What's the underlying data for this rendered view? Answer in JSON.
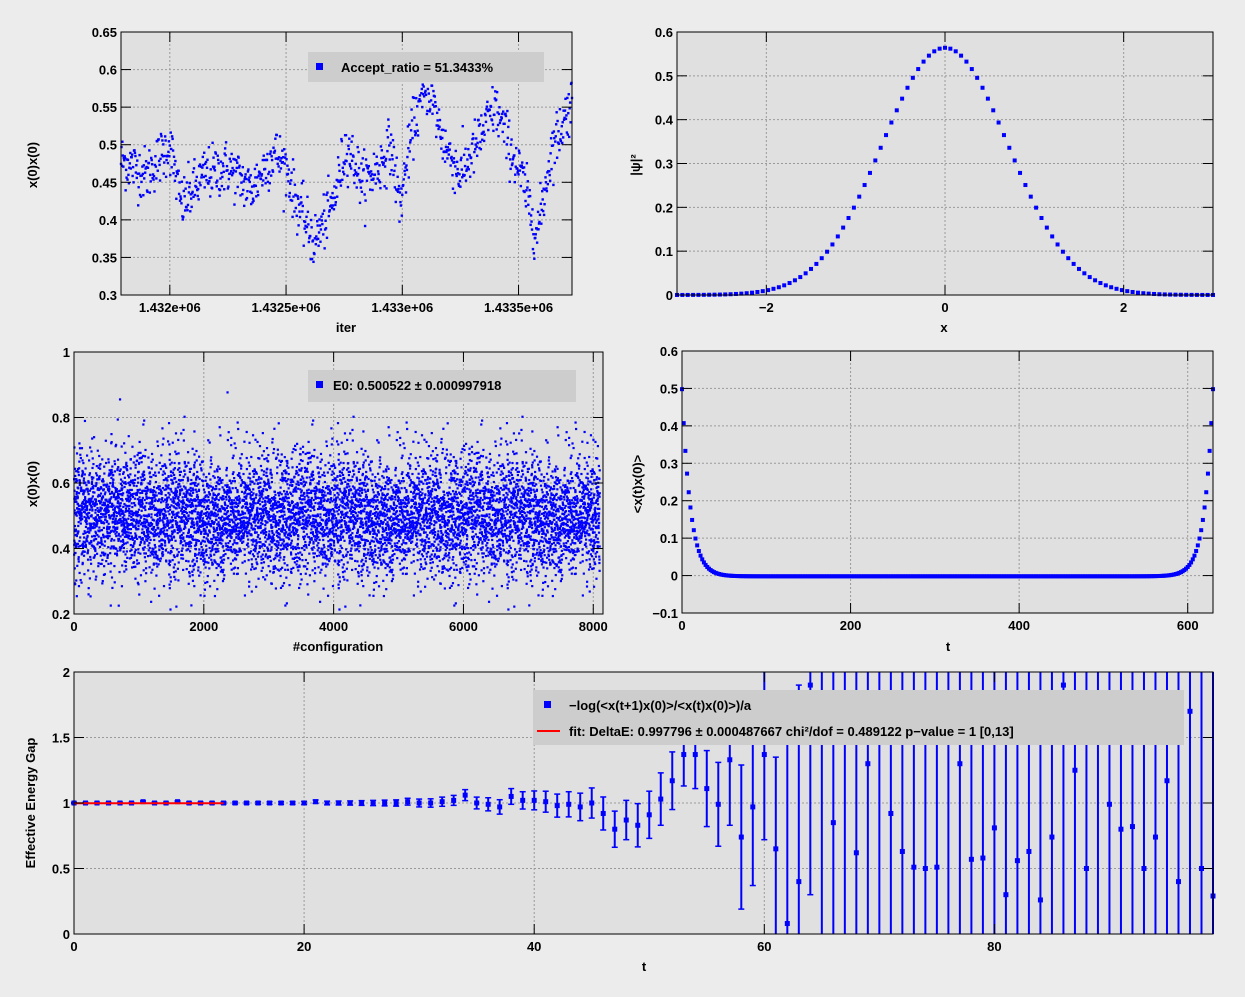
{
  "chart_data": [
    {
      "id": "mc-history",
      "type": "scatter",
      "xlabel": "iter",
      "ylabel": "x(0)x(0)",
      "xlim": [
        1431790,
        1433730
      ],
      "ylim": [
        0.3,
        0.65
      ],
      "yticks": [
        "0.3",
        "0.35",
        "0.4",
        "0.45",
        "0.5",
        "0.55",
        "0.6",
        "0.65"
      ],
      "xticks": [
        "1.432e+06",
        "1.4325e+06",
        "1.433e+06",
        "1.4335e+06"
      ],
      "xtick_values": [
        1432000,
        1432500,
        1433000,
        1433500
      ],
      "grid": true,
      "legend": {
        "position": "top-right",
        "entries": [
          "Accept_ratio = 51.3433%"
        ]
      },
      "series_color": "#0000ff",
      "anchors": [
        [
          1431790,
          0.48
        ],
        [
          1431900,
          0.46
        ],
        [
          1432000,
          0.5
        ],
        [
          1432050,
          0.42
        ],
        [
          1432150,
          0.46
        ],
        [
          1432250,
          0.47
        ],
        [
          1432350,
          0.44
        ],
        [
          1432450,
          0.49
        ],
        [
          1432500,
          0.47
        ],
        [
          1432550,
          0.42
        ],
        [
          1432620,
          0.37
        ],
        [
          1432700,
          0.42
        ],
        [
          1432760,
          0.5
        ],
        [
          1432830,
          0.45
        ],
        [
          1432900,
          0.47
        ],
        [
          1432950,
          0.5
        ],
        [
          1432990,
          0.42
        ],
        [
          1433050,
          0.53
        ],
        [
          1433110,
          0.58
        ],
        [
          1433180,
          0.5
        ],
        [
          1433250,
          0.46
        ],
        [
          1433320,
          0.5
        ],
        [
          1433400,
          0.55
        ],
        [
          1433460,
          0.5
        ],
        [
          1433520,
          0.45
        ],
        [
          1433580,
          0.38
        ],
        [
          1433640,
          0.49
        ],
        [
          1433730,
          0.56
        ]
      ],
      "points": []
    },
    {
      "id": "wavefunction",
      "type": "scatter",
      "xlabel": "x",
      "ylabel": "|ψ|²",
      "xlim": [
        -3,
        3
      ],
      "ylim": [
        0,
        0.6
      ],
      "yticks": [
        "0",
        "0.1",
        "0.2",
        "0.3",
        "0.4",
        "0.5",
        "0.6"
      ],
      "xticks": [
        "−2",
        "0",
        "2"
      ],
      "xtick_values": [
        -2,
        0,
        2
      ],
      "grid": true,
      "series_color": "#0000ff",
      "peak": 0.564,
      "points": []
    },
    {
      "id": "configurations",
      "type": "scatter",
      "xlabel": "#configuration",
      "ylabel": "x(0)x(0)",
      "xlim": [
        0,
        8150
      ],
      "ylim": [
        0.2,
        1.0
      ],
      "yticks": [
        "0.2",
        "0.4",
        "0.6",
        "0.8",
        "1"
      ],
      "xticks": [
        "0",
        "2000",
        "4000",
        "6000",
        "8000"
      ],
      "xtick_values": [
        0,
        2000,
        4000,
        6000,
        8000
      ],
      "grid": true,
      "legend": {
        "position": "top-right",
        "entries": [
          "E0: 0.500522 ± 0.000997918"
        ]
      },
      "series_color": "#0000ff",
      "mean": 0.5,
      "spread": 0.09,
      "count": 8100,
      "points": []
    },
    {
      "id": "correlator",
      "type": "scatter",
      "xlabel": "t",
      "ylabel": "<x(t)x(0)>",
      "xlim": [
        0,
        630
      ],
      "ylim": [
        -0.1,
        0.6
      ],
      "yticks": [
        "−0.1",
        "0",
        "0.1",
        "0.2",
        "0.3",
        "0.4",
        "0.5",
        "0.6"
      ],
      "yticks_values": [
        -0.1,
        0,
        0.1,
        0.2,
        0.3,
        0.4,
        0.5,
        0.6
      ],
      "xticks": [
        "0",
        "200",
        "400",
        "600"
      ],
      "xtick_values": [
        0,
        200,
        400,
        600
      ],
      "grid": true,
      "series_color": "#0000ff",
      "amplitude": 0.5,
      "period": 630,
      "points": []
    },
    {
      "id": "effective-gap",
      "type": "scatter",
      "xlabel": "t",
      "ylabel": "Effective Energy Gap",
      "xlim": [
        0,
        99
      ],
      "ylim": [
        0,
        2
      ],
      "yticks": [
        "0",
        "0.5",
        "1",
        "1.5",
        "2"
      ],
      "yticks_values": [
        0,
        0.5,
        1,
        1.5,
        2
      ],
      "xticks": [
        "0",
        "20",
        "40",
        "60",
        "80"
      ],
      "xtick_values": [
        0,
        20,
        40,
        60,
        80
      ],
      "grid": true,
      "legend": {
        "position": "top-right",
        "entries": [
          "−log(<x(t+1)x(0)>/<x(t)x(0)>)/a",
          "fit: DeltaE: 0.997796 ± 0.000487667   chi²/dof = 0.489122  p−value = 1  [0,13]"
        ]
      },
      "series_color": "#0000ff",
      "fit_color": "#ff0000",
      "fit": {
        "value": 0.997796,
        "range": [
          0,
          13
        ]
      },
      "y": [
        1.0,
        1.0,
        1.0,
        1.0,
        1.0,
        1.0,
        1.01,
        1.0,
        1.0,
        1.01,
        1.0,
        1.0,
        1.0,
        1.0,
        1.0,
        1.0,
        1.0,
        1.0,
        1.0,
        1.0,
        1.0,
        1.01,
        1.0,
        1.0,
        1.0,
        1.0,
        1.0,
        1.0,
        1.0,
        1.01,
        1.0,
        1.0,
        1.01,
        1.02,
        1.06,
        1.0,
        0.99,
        0.97,
        1.05,
        1.02,
        1.02,
        1.01,
        0.98,
        0.99,
        0.97,
        1.0,
        0.92,
        0.8,
        0.87,
        0.83,
        0.91,
        1.03,
        1.17,
        1.37,
        1.37,
        1.11,
        0.99,
        1.33,
        0.74,
        0.97,
        1.37,
        0.65,
        0.08,
        0.4,
        1.9,
        1.6,
        0.85,
        1.75,
        0.62,
        1.3,
        1.77,
        0.92,
        0.63,
        0.51,
        0.5,
        0.51,
        1.47,
        1.3,
        0.57,
        0.58,
        0.81,
        0.3,
        0.56,
        0.63,
        0.26,
        0.74,
        1.9,
        1.25,
        0.5,
        1.7,
        0.99,
        0.8,
        0.82,
        0.5,
        0.74,
        1.17,
        0.4,
        1.7,
        0.5,
        0.29
      ],
      "err": [
        0.005,
        0.005,
        0.005,
        0.005,
        0.005,
        0.005,
        0.006,
        0.006,
        0.006,
        0.006,
        0.007,
        0.007,
        0.007,
        0.008,
        0.008,
        0.008,
        0.009,
        0.01,
        0.01,
        0.011,
        0.012,
        0.013,
        0.014,
        0.015,
        0.016,
        0.018,
        0.02,
        0.022,
        0.024,
        0.026,
        0.03,
        0.032,
        0.035,
        0.038,
        0.042,
        0.045,
        0.05,
        0.055,
        0.06,
        0.066,
        0.072,
        0.08,
        0.088,
        0.096,
        0.105,
        0.115,
        0.126,
        0.138,
        0.15,
        0.165,
        0.18,
        0.2,
        0.22,
        0.24,
        0.26,
        0.29,
        0.32,
        0.5,
        0.55,
        0.6,
        0.65,
        0.7,
        1.4,
        1.5,
        1.6,
        1.7,
        1.8,
        1.9,
        2,
        2,
        2,
        2,
        2,
        2,
        2,
        2,
        2,
        2,
        2,
        2,
        2,
        2,
        2,
        2,
        2,
        2,
        2,
        2,
        2,
        2,
        2,
        2,
        2,
        2,
        2,
        2,
        2,
        2,
        2,
        2
      ]
    }
  ]
}
